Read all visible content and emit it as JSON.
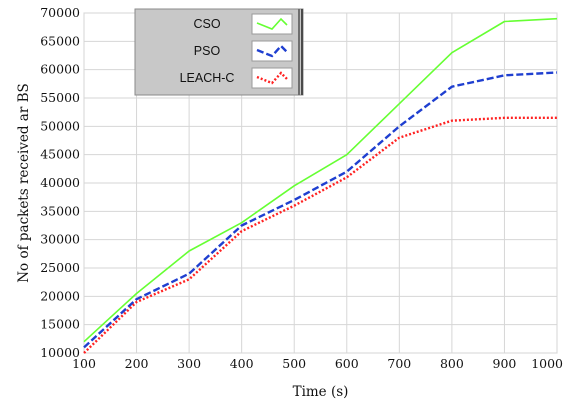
{
  "chart_data": {
    "type": "line",
    "title": "",
    "xlabel": "Time (s)",
    "ylabel": "No of packets received ar BS",
    "xlim": [
      100,
      1000
    ],
    "ylim": [
      10000,
      70000
    ],
    "x_ticks": [
      100,
      200,
      300,
      400,
      500,
      600,
      700,
      800,
      900,
      1000
    ],
    "y_ticks": [
      10000,
      15000,
      20000,
      25000,
      30000,
      35000,
      40000,
      45000,
      50000,
      55000,
      60000,
      65000,
      70000
    ],
    "grid": true,
    "legend_position": "top-left",
    "x": [
      100,
      200,
      300,
      400,
      500,
      600,
      700,
      800,
      900,
      1000
    ],
    "series": [
      {
        "name": "CSO",
        "color": "#66ff33",
        "style": "solid",
        "values": [
          12000,
          20500,
          28000,
          33000,
          39500,
          45000,
          54000,
          63000,
          68500,
          69000
        ]
      },
      {
        "name": "PSO",
        "color": "#1f3fd0",
        "style": "dashed",
        "values": [
          11000,
          19500,
          24000,
          32500,
          37000,
          42000,
          50000,
          57000,
          59000,
          59500
        ]
      },
      {
        "name": "LEACH-C",
        "color": "#ff2222",
        "style": "dotted",
        "values": [
          10000,
          19000,
          23000,
          31500,
          36000,
          41000,
          48000,
          51000,
          51500,
          51500
        ]
      }
    ]
  }
}
